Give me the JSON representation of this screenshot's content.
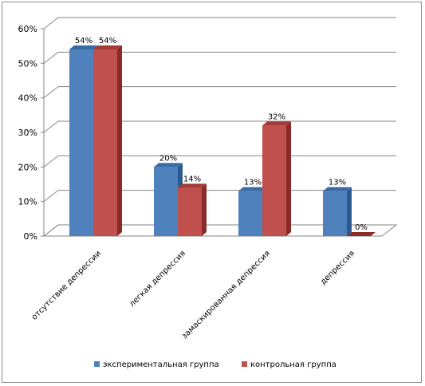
{
  "chart_data": {
    "type": "bar",
    "categories": [
      "отсутствие депрессии",
      "легкая депрессия",
      "замаскированная депрессия",
      "депрессия"
    ],
    "series": [
      {
        "name": "экспериментальная группа",
        "values": [
          54,
          20,
          13,
          13
        ],
        "labels": [
          "54%",
          "20%",
          "13%",
          "13%"
        ],
        "color": "#4f81bd",
        "side_color": "#2c5a8f",
        "top_color": "#3a6aa3"
      },
      {
        "name": "контрольная группа",
        "values": [
          54,
          14,
          32,
          0
        ],
        "labels": [
          "54%",
          "14%",
          "32%",
          "0%"
        ],
        "color": "#c0504d",
        "side_color": "#8b2b29",
        "top_color": "#a33b38"
      }
    ],
    "ylim": [
      0,
      60
    ],
    "yticks": [
      0,
      10,
      20,
      30,
      40,
      50,
      60
    ],
    "ytick_labels": [
      "0%",
      "10%",
      "20%",
      "30%",
      "40%",
      "50%",
      "60%"
    ],
    "title": "",
    "xlabel": "",
    "ylabel": "",
    "grid": true,
    "legend_position": "bottom"
  }
}
